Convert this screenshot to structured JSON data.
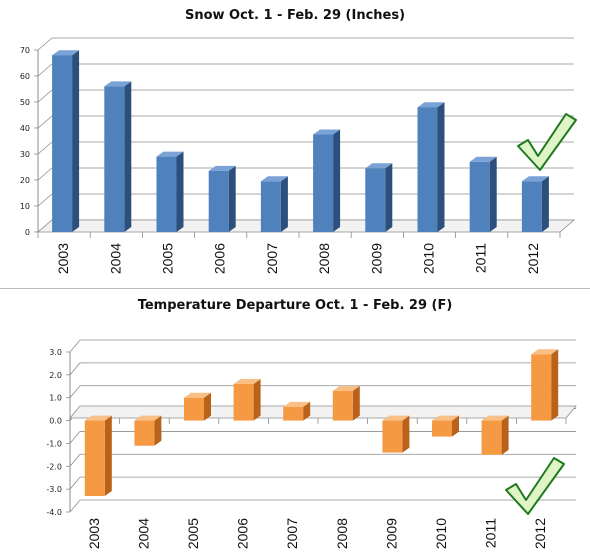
{
  "colors": {
    "snow_front": "#4f81bd",
    "snow_side": "#2c4f7c",
    "snow_top": "#7aa2d6",
    "temp_front": "#f59a43",
    "temp_side": "#b8621a",
    "temp_top": "#f8bf86",
    "grid": "#8c8c8c",
    "check_fill": "#dff5c8",
    "check_stroke": "#1f7a1f"
  },
  "chart_data": [
    {
      "type": "bar",
      "title": "Snow Oct. 1 - Feb. 29 (Inches)",
      "categories": [
        "2003",
        "2004",
        "2005",
        "2006",
        "2007",
        "2008",
        "2009",
        "2010",
        "2011",
        "2012"
      ],
      "values": [
        68,
        56,
        29,
        23.5,
        19.5,
        37.5,
        24.5,
        48,
        27,
        19.5
      ],
      "ylim": [
        0,
        70
      ],
      "yticks": [
        0,
        10,
        20,
        30,
        40,
        50,
        60,
        70
      ],
      "ytick_labels": [
        "0",
        "10",
        "20",
        "30",
        "40",
        "50",
        "60",
        "70"
      ],
      "grid": true,
      "annotation": "checkmark-icon"
    },
    {
      "type": "bar",
      "title": "Temperature Departure Oct. 1 - Feb. 29 (F)",
      "categories": [
        "2003",
        "2004",
        "2005",
        "2006",
        "2007",
        "2008",
        "2009",
        "2010",
        "2011",
        "2012"
      ],
      "values": [
        -3.3,
        -1.1,
        1.0,
        1.6,
        0.6,
        1.3,
        -1.4,
        -0.7,
        -1.5,
        2.9
      ],
      "ylim": [
        -4.0,
        3.0
      ],
      "yticks": [
        -4.0,
        -3.0,
        -2.0,
        -1.0,
        0.0,
        1.0,
        2.0,
        3.0
      ],
      "ytick_labels": [
        "-4.0",
        "-3.0",
        "-2.0",
        "-1.0",
        "0.0",
        "1.0",
        "2.0",
        "3.0"
      ],
      "grid": true,
      "annotation": "checkmark-icon"
    }
  ]
}
